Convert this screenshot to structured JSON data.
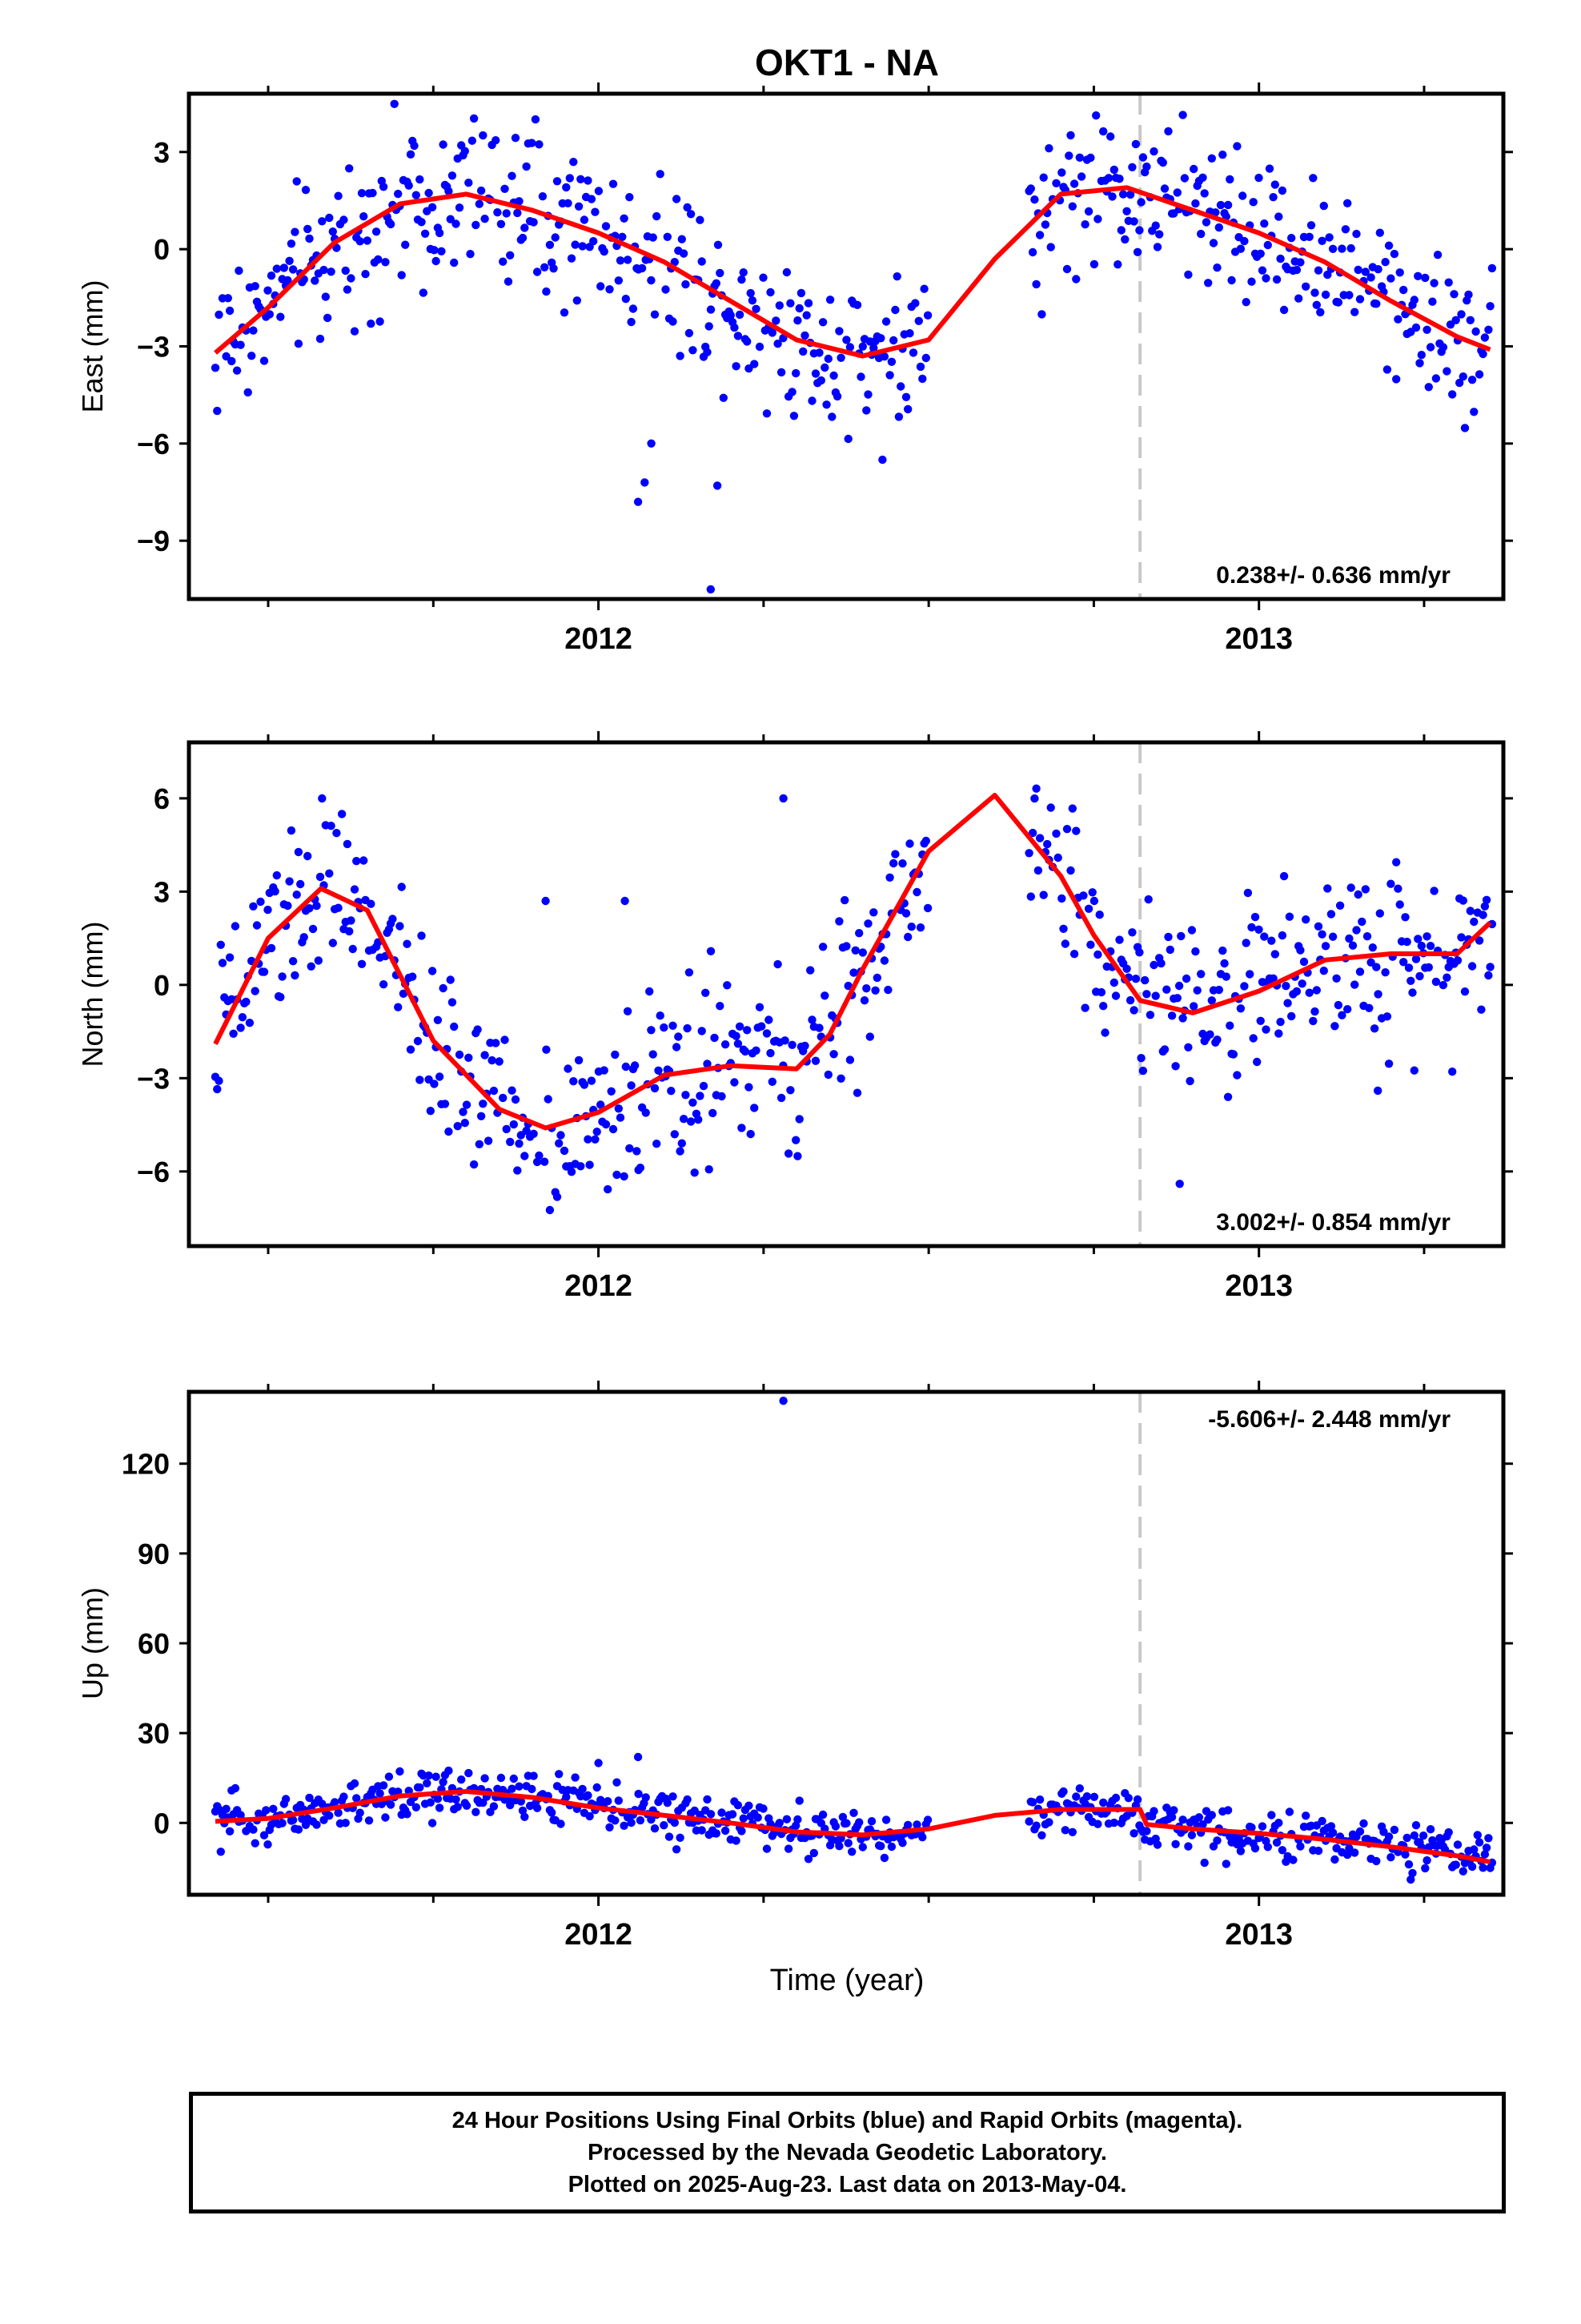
{
  "title": "OKT1 - NA",
  "xlabel": "Time (year)",
  "footer": {
    "line1": "24 Hour Positions Using Final Orbits (blue) and Rapid Orbits (magenta).",
    "line2": "Processed by the Nevada Geodetic Laboratory.",
    "line3": "Plotted on 2025-Aug-23. Last data on 2013-May-04."
  },
  "colors": {
    "final_points": "#0000ff",
    "fit_line": "#ff0000",
    "step_line": "#c8c8c8"
  },
  "chart_data": [
    {
      "type": "scatter",
      "panel": "east",
      "ylabel": "East (mm)",
      "rate_label": "0.238+/- 0.636 mm/yr",
      "xlim": [
        2011.38,
        2013.37
      ],
      "ylim": [
        -10.8,
        4.8
      ],
      "yticks": [
        3,
        0,
        -3,
        -6,
        -9
      ],
      "ytick_labels": [
        "3",
        "0",
        "−3",
        "−6",
        "−9"
      ],
      "xticks": [
        2012,
        2013
      ],
      "xtick_labels": [
        "2012",
        "2013"
      ],
      "step_x": 2012.82,
      "fit": {
        "x": [
          2011.42,
          2011.5,
          2011.6,
          2011.7,
          2011.8,
          2011.9,
          2012.0,
          2012.1,
          2012.2,
          2012.3,
          2012.4,
          2012.5,
          2012.6,
          2012.7,
          2012.8,
          2012.9,
          2013.0,
          2013.1,
          2013.2,
          2013.3,
          2013.35
        ],
        "y": [
          -3.2,
          -1.8,
          0.2,
          1.4,
          1.7,
          1.2,
          0.5,
          -0.4,
          -1.6,
          -2.8,
          -3.3,
          -2.8,
          -0.3,
          1.7,
          1.9,
          1.2,
          0.5,
          -0.4,
          -1.6,
          -2.7,
          -3.1
        ]
      },
      "anchors": {
        "x": [
          2011.42,
          2011.5,
          2011.6,
          2011.7,
          2011.8,
          2011.9,
          2012.0,
          2012.1,
          2012.2,
          2012.3,
          2012.4,
          2012.5,
          2012.6,
          2012.7,
          2012.8,
          2012.9,
          2013.0,
          2013.1,
          2013.2,
          2013.3,
          2013.35
        ],
        "y": [
          -3.2,
          -1.8,
          0.2,
          1.4,
          1.7,
          1.2,
          0.5,
          -0.4,
          -1.6,
          -2.8,
          -3.3,
          -2.8,
          -0.3,
          1.7,
          1.9,
          1.2,
          0.5,
          -0.4,
          -1.6,
          -2.7,
          -3.1
        ]
      },
      "noise": 1.3,
      "gaps": [
        [
          2012.5,
          2012.65
        ]
      ],
      "outliers": {
        "x": [
          2012.06,
          2012.07,
          2012.08,
          2012.17,
          2012.18,
          2012.43
        ],
        "y": [
          -7.8,
          -7.2,
          -6.0,
          -10.5,
          -7.3,
          -6.5
        ]
      }
    },
    {
      "type": "scatter",
      "panel": "north",
      "ylabel": "North (mm)",
      "rate_label": "3.002+/- 0.854 mm/yr",
      "xlim": [
        2011.38,
        2013.37
      ],
      "ylim": [
        -8.4,
        7.8
      ],
      "yticks": [
        6,
        3,
        0,
        -3,
        -6
      ],
      "ytick_labels": [
        "6",
        "3",
        "0",
        "−3",
        "−6"
      ],
      "xticks": [
        2012,
        2013
      ],
      "xtick_labels": [
        "2012",
        "2013"
      ],
      "step_x": 2012.82,
      "fit": {
        "x": [
          2011.42,
          2011.5,
          2011.58,
          2011.65,
          2011.75,
          2011.85,
          2011.92,
          2012.0,
          2012.1,
          2012.2,
          2012.3,
          2012.35,
          2012.4,
          2012.5,
          2012.6,
          2012.7,
          2012.75,
          2012.82,
          2012.9,
          2013.0,
          2013.1,
          2013.2,
          2013.3,
          2013.35
        ],
        "y": [
          -1.9,
          1.5,
          3.1,
          2.4,
          -1.8,
          -4.0,
          -4.6,
          -4.1,
          -2.9,
          -2.6,
          -2.7,
          -1.6,
          0.5,
          4.3,
          6.1,
          3.5,
          1.6,
          -0.5,
          -0.9,
          -0.2,
          0.8,
          1.0,
          1.0,
          2.0
        ]
      },
      "anchors": {
        "x": [
          2011.42,
          2011.5,
          2011.58,
          2011.65,
          2011.75,
          2011.85,
          2011.92,
          2012.0,
          2012.1,
          2012.2,
          2012.3,
          2012.35,
          2012.4,
          2012.5,
          2012.6,
          2012.7,
          2012.75,
          2012.82,
          2012.9,
          2013.0,
          2013.1,
          2013.2,
          2013.3,
          2013.35
        ],
        "y": [
          -1.9,
          1.5,
          3.1,
          2.4,
          -1.8,
          -4.0,
          -4.6,
          -4.1,
          -2.9,
          -2.6,
          -2.7,
          -1.6,
          0.5,
          4.3,
          6.1,
          3.5,
          1.6,
          -0.5,
          -0.9,
          -0.2,
          0.8,
          1.0,
          1.0,
          2.0
        ]
      },
      "noise": 1.5,
      "gaps": [
        [
          2012.5,
          2012.65
        ]
      ],
      "outliers": {
        "x": [
          2012.28,
          2012.88,
          2013.18,
          2012.04,
          2011.92
        ],
        "y": [
          6.0,
          -6.4,
          -3.4,
          2.7,
          2.7
        ]
      }
    },
    {
      "type": "scatter",
      "panel": "up",
      "ylabel": "Up (mm)",
      "rate_label": "-5.606+/- 2.448 mm/yr",
      "xlim": [
        2011.38,
        2013.37
      ],
      "ylim": [
        -24,
        144
      ],
      "yticks": [
        120,
        90,
        60,
        30,
        0
      ],
      "ytick_labels": [
        "120",
        "90",
        "60",
        "30",
        "0"
      ],
      "xticks": [
        2012,
        2013
      ],
      "xtick_labels": [
        "2012",
        "2013"
      ],
      "step_x": 2012.82,
      "fit": {
        "x": [
          2011.42,
          2011.5,
          2011.6,
          2011.7,
          2011.8,
          2011.9,
          2012.0,
          2012.1,
          2012.2,
          2012.3,
          2012.4,
          2012.5,
          2012.6,
          2012.7,
          2012.82,
          2012.83,
          2012.9,
          2013.0,
          2013.1,
          2013.2,
          2013.3,
          2013.35
        ],
        "y": [
          0.5,
          1.5,
          5.0,
          9.0,
          10.5,
          8.5,
          5.0,
          2.5,
          0.0,
          -3.0,
          -4.0,
          -2.0,
          2.5,
          4.5,
          4.5,
          -0.5,
          -2.0,
          -3.5,
          -5.5,
          -8.0,
          -11.0,
          -13.0
        ]
      },
      "anchors": {
        "x": [
          2011.42,
          2011.5,
          2011.6,
          2011.7,
          2011.8,
          2011.9,
          2012.0,
          2012.1,
          2012.2,
          2012.3,
          2012.4,
          2012.5,
          2012.6,
          2012.7,
          2012.82,
          2012.83,
          2012.9,
          2013.0,
          2013.1,
          2013.2,
          2013.3,
          2013.35
        ],
        "y": [
          0.5,
          1.5,
          5.0,
          9.0,
          10.5,
          8.5,
          5.0,
          2.5,
          0.0,
          -3.0,
          -4.0,
          -2.0,
          2.5,
          4.5,
          4.5,
          -0.5,
          -2.0,
          -3.5,
          -5.5,
          -8.0,
          -11.0,
          -13.0
        ]
      },
      "noise": 4.5,
      "gaps": [
        [
          2012.5,
          2012.65
        ]
      ],
      "outliers": {
        "x": [
          2012.28,
          2012.06,
          2012.0
        ],
        "y": [
          141,
          22,
          20
        ]
      }
    }
  ]
}
